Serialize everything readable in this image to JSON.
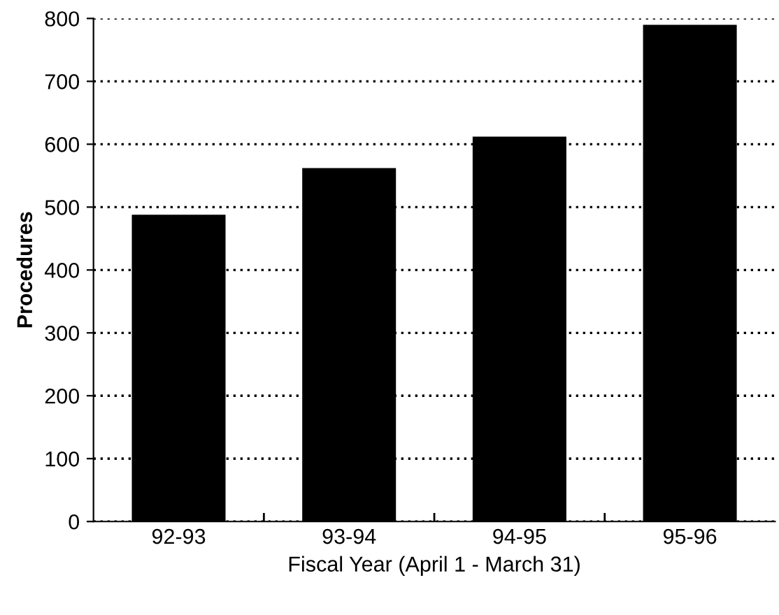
{
  "chart_data": {
    "type": "bar",
    "xlabel": "Fiscal Year (April 1 - March 31)",
    "ylabel": "Procedures",
    "categories": [
      "92-93",
      "93-94",
      "94-95",
      "95-96"
    ],
    "values": [
      488,
      562,
      612,
      790
    ],
    "color": "#000000",
    "ylim": [
      0,
      800
    ],
    "yticks": [
      0,
      100,
      200,
      300,
      400,
      500,
      600,
      700,
      800
    ],
    "grid": "y"
  }
}
